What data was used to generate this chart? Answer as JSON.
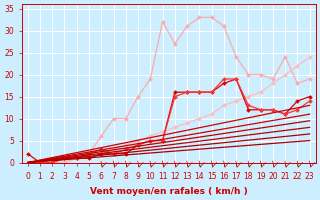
{
  "xlabel": "Vent moyen/en rafales ( km/h )",
  "bg_color": "#cceeff",
  "grid_color": "#ffffff",
  "x_ticks": [
    0,
    1,
    2,
    3,
    4,
    5,
    6,
    7,
    8,
    9,
    10,
    11,
    12,
    13,
    14,
    15,
    16,
    17,
    18,
    19,
    20,
    21,
    22,
    23
  ],
  "y_ticks": [
    0,
    5,
    10,
    15,
    20,
    25,
    30,
    35
  ],
  "xlim": [
    -0.5,
    23.5
  ],
  "ylim": [
    0,
    36
  ],
  "series": [
    {
      "x": [
        0,
        1,
        2,
        3,
        4,
        5,
        6,
        7,
        8,
        9,
        10,
        11,
        12,
        13,
        14,
        15,
        16,
        17,
        18,
        19,
        20,
        21,
        22,
        23
      ],
      "y": [
        0,
        0,
        0,
        0,
        1,
        2,
        6,
        10,
        10,
        15,
        19,
        32,
        27,
        31,
        33,
        33,
        31,
        24,
        20,
        20,
        19,
        24,
        18,
        19
      ],
      "color": "#ffaaaa",
      "lw": 0.9,
      "marker": "D",
      "ms": 2.0
    },
    {
      "x": [
        0,
        1,
        2,
        3,
        4,
        5,
        6,
        7,
        8,
        9,
        10,
        11,
        12,
        13,
        14,
        15,
        16,
        17,
        18,
        19,
        20,
        21,
        22,
        23
      ],
      "y": [
        0,
        0,
        0,
        0,
        1,
        1,
        2,
        3,
        4,
        5,
        6,
        7,
        8,
        9,
        10,
        11,
        13,
        14,
        15,
        16,
        18,
        20,
        22,
        24
      ],
      "color": "#ffbbbb",
      "lw": 0.9,
      "marker": "D",
      "ms": 2.0
    },
    {
      "x": [
        0,
        1,
        2,
        3,
        4,
        5,
        6,
        7,
        8,
        9,
        10,
        11,
        12,
        13,
        14,
        15,
        16,
        17,
        18,
        19,
        20,
        21,
        22,
        23
      ],
      "y": [
        2,
        0,
        0,
        1,
        1,
        1,
        2,
        2,
        2,
        4,
        5,
        5,
        16,
        16,
        16,
        16,
        18,
        19,
        12,
        12,
        12,
        11,
        14,
        15
      ],
      "color": "#dd0000",
      "lw": 0.9,
      "marker": "D",
      "ms": 2.0
    },
    {
      "x": [
        0,
        1,
        2,
        3,
        4,
        5,
        6,
        7,
        8,
        9,
        10,
        11,
        12,
        13,
        14,
        15,
        16,
        17,
        18,
        19,
        20,
        21,
        22,
        23
      ],
      "y": [
        0,
        0,
        0,
        1,
        1,
        2,
        3,
        2,
        3,
        4,
        5,
        5,
        15,
        16,
        16,
        16,
        19,
        19,
        13,
        12,
        12,
        11,
        12,
        14
      ],
      "color": "#ff3333",
      "lw": 0.9,
      "marker": "D",
      "ms": 2.0
    },
    {
      "x": [
        0,
        23
      ],
      "y": [
        0,
        13
      ],
      "color": "#cc0000",
      "lw": 0.9,
      "marker": null,
      "ms": 0
    },
    {
      "x": [
        0,
        23
      ],
      "y": [
        0,
        11
      ],
      "color": "#cc0000",
      "lw": 0.9,
      "marker": null,
      "ms": 0
    },
    {
      "x": [
        0,
        23
      ],
      "y": [
        0,
        9.5
      ],
      "color": "#bb0000",
      "lw": 0.9,
      "marker": null,
      "ms": 0
    },
    {
      "x": [
        0,
        23
      ],
      "y": [
        0,
        8
      ],
      "color": "#bb0000",
      "lw": 0.9,
      "marker": null,
      "ms": 0
    },
    {
      "x": [
        0,
        23
      ],
      "y": [
        0,
        6.5
      ],
      "color": "#aa0000",
      "lw": 0.9,
      "marker": null,
      "ms": 0
    },
    {
      "x": [
        0,
        23
      ],
      "y": [
        0,
        5
      ],
      "color": "#aa0000",
      "lw": 0.9,
      "marker": null,
      "ms": 0
    }
  ],
  "wind_arrows_x": [
    6,
    7,
    8,
    9,
    10,
    11,
    12,
    13,
    14,
    15,
    16,
    17,
    18,
    19,
    20,
    21,
    22,
    23
  ],
  "xlabel_color": "#cc0000",
  "xlabel_fontsize": 6.5,
  "tick_color": "#cc0000",
  "tick_fontsize": 5.5
}
